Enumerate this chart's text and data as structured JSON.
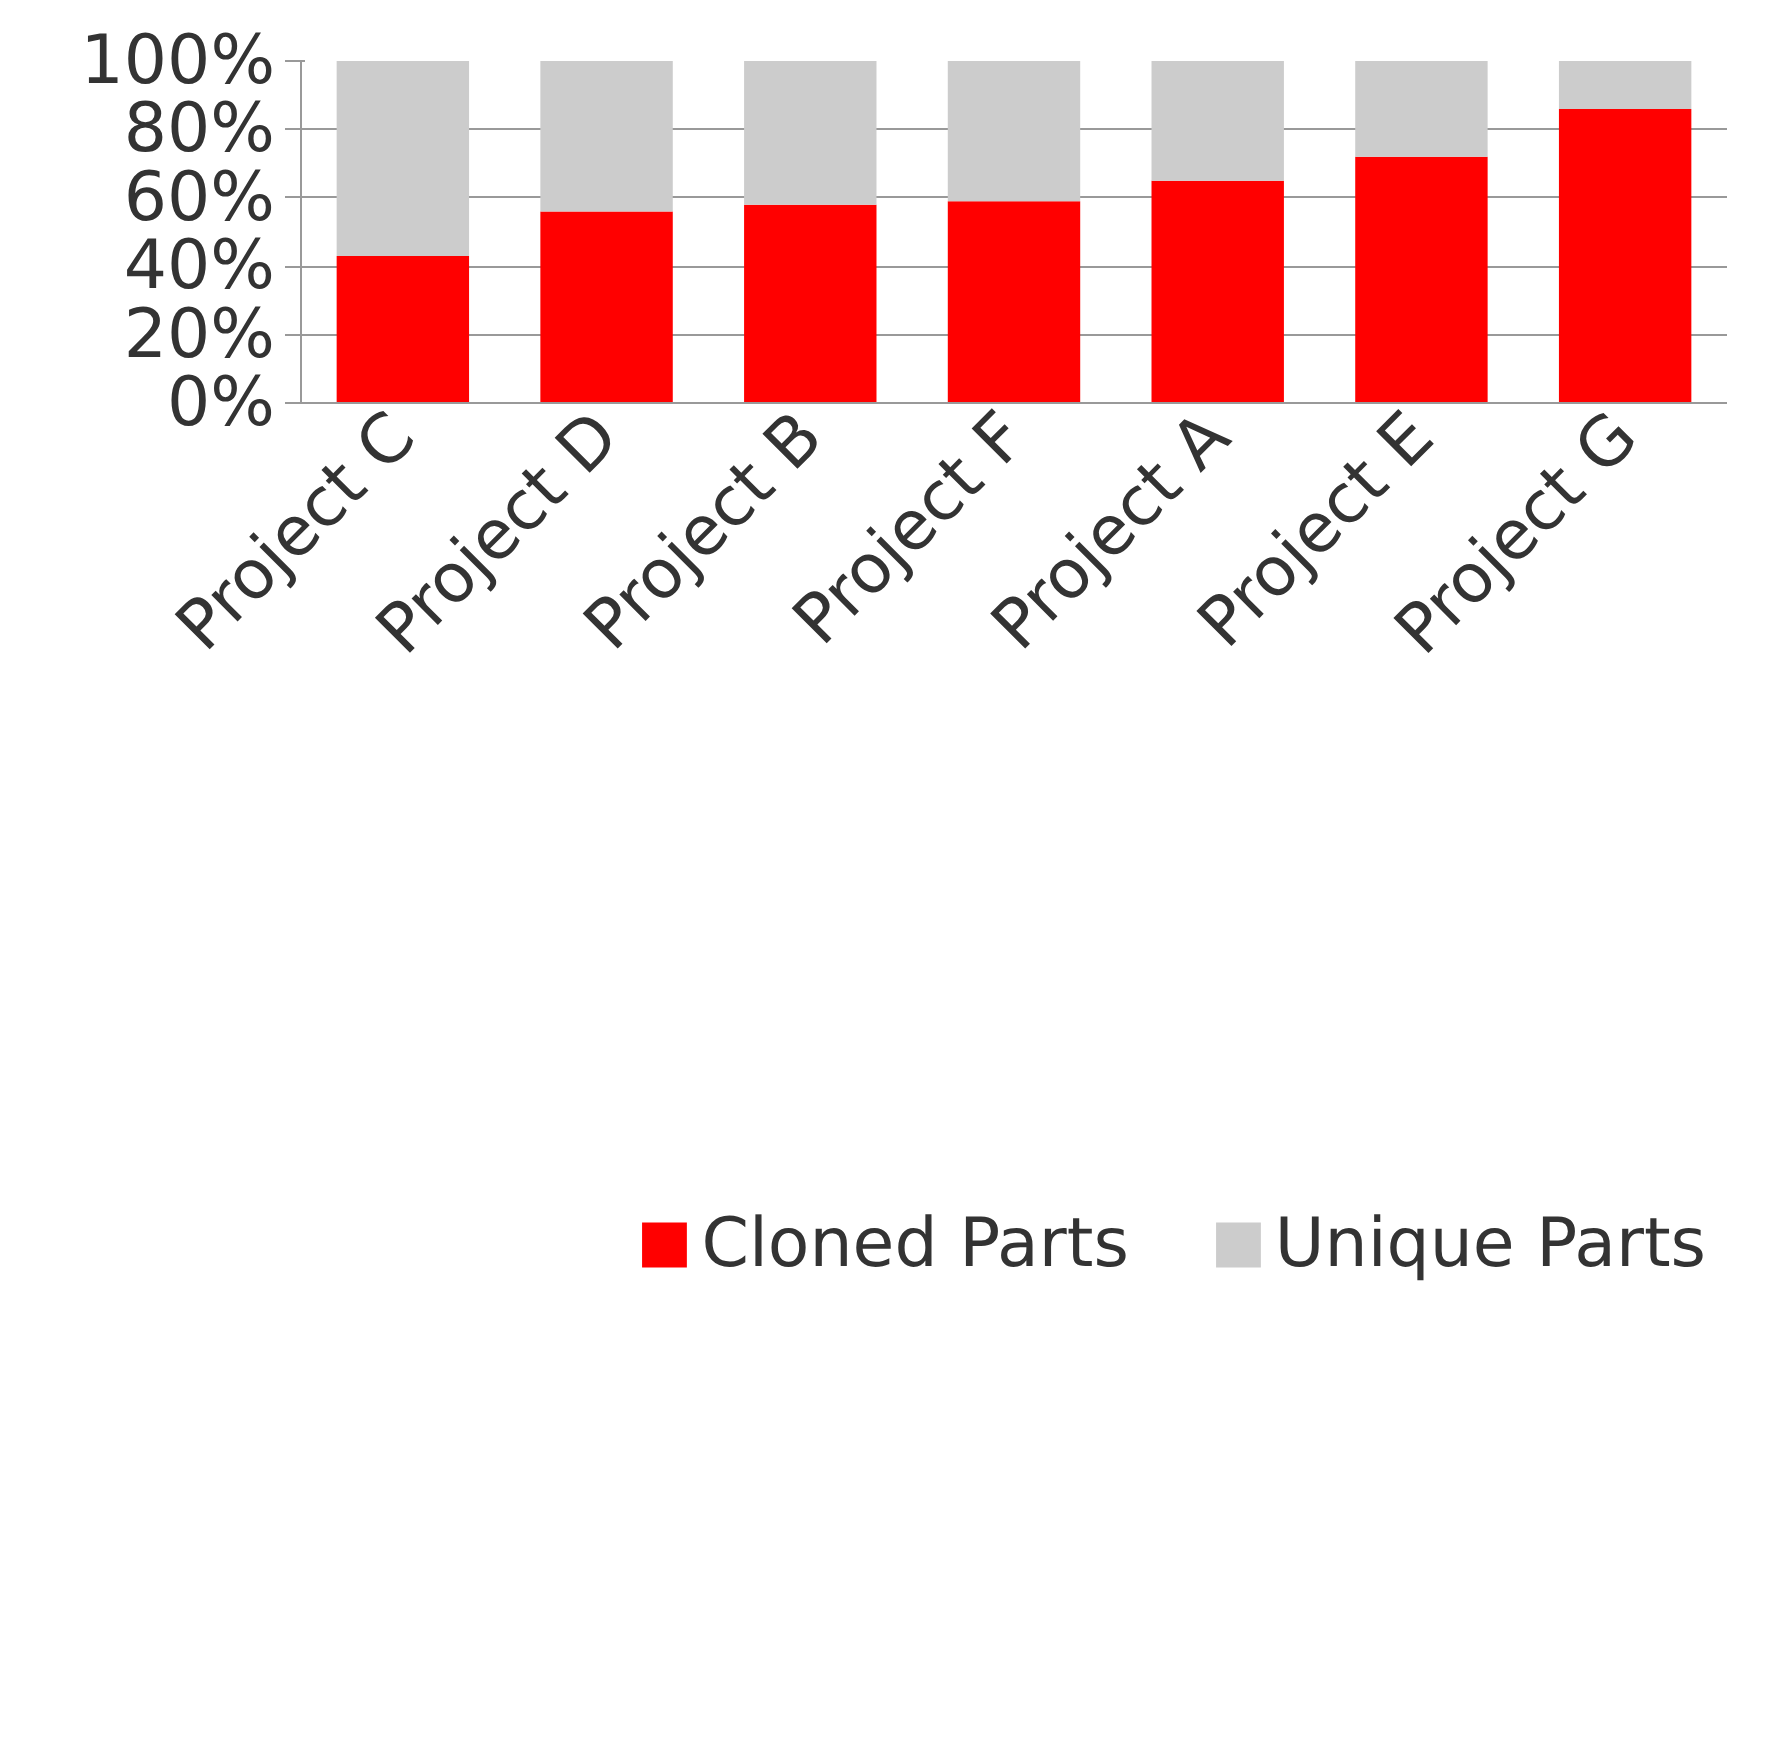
{
  "chart_data": {
    "type": "bar",
    "stacked": true,
    "categories": [
      "Project C",
      "Project D",
      "Project B",
      "Project F",
      "Project A",
      "Project E",
      "Project G"
    ],
    "series": [
      {
        "name": "Cloned Parts",
        "color": "#ff0000",
        "values": [
          43,
          56,
          58,
          59,
          65,
          72,
          86
        ]
      },
      {
        "name": "Unique Parts",
        "color": "#cccccc",
        "values": [
          57,
          44,
          42,
          41,
          35,
          28,
          14
        ]
      }
    ],
    "ylim": [
      0,
      100
    ],
    "yticks": [
      {
        "value": 0,
        "label": "0%"
      },
      {
        "value": 20,
        "label": "20%"
      },
      {
        "value": 40,
        "label": "40%"
      },
      {
        "value": 60,
        "label": "60%"
      },
      {
        "value": 80,
        "label": "80%"
      },
      {
        "value": 100,
        "label": "100%"
      }
    ],
    "grid": "y",
    "legend": "bottom"
  }
}
